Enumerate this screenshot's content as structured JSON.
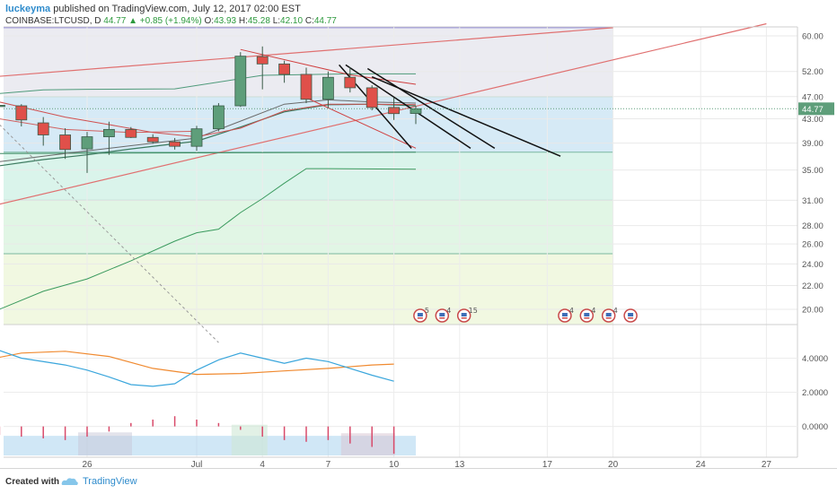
{
  "header": {
    "user": "luckeyma",
    "published": "published on TradingView.com, July 12, 2017 02:00 EST"
  },
  "ohlc": {
    "symbol": "COINBASE:LTCUSD, D",
    "last": "44.77",
    "change": "▲ +0.85 (+1.94%)",
    "o_label": "O:",
    "o": "43.93",
    "h_label": "H:",
    "h": "45.28",
    "l_label": "L:",
    "l": "42.10",
    "c_label": "C:",
    "c": "44.77"
  },
  "footer": {
    "created_with": "Created with",
    "brand": "TradingView"
  },
  "colors": {
    "up": "#5e9e7a",
    "down": "#e0504a",
    "accent": "#2e8bcc"
  },
  "chart_data": {
    "type": "candlestick",
    "price_axis": {
      "ticks": [
        60.0,
        52.0,
        47.0,
        43.0,
        39.0,
        35.0,
        31.0,
        28.0,
        26.0,
        24.0,
        22.0,
        20.0
      ],
      "last_label": "44.77",
      "scale": "log"
    },
    "x_axis": {
      "labels": [
        {
          "day": 0,
          "text": "26"
        },
        {
          "day": 5,
          "text": "Jul"
        },
        {
          "day": 8,
          "text": "4"
        },
        {
          "day": 11,
          "text": "7"
        },
        {
          "day": 14,
          "text": "10"
        },
        {
          "day": 17,
          "text": "13"
        },
        {
          "day": 21,
          "text": "17"
        },
        {
          "day": 24,
          "text": "20"
        },
        {
          "day": 28,
          "text": "24"
        },
        {
          "day": 31,
          "text": "27"
        }
      ]
    },
    "candles": [
      {
        "day": -4,
        "o": 45.2,
        "h": 45.8,
        "l": 44.8,
        "c": 45.4
      },
      {
        "day": -3,
        "o": 45.3,
        "h": 45.6,
        "l": 41.7,
        "c": 42.8
      },
      {
        "day": -2,
        "o": 42.3,
        "h": 43.3,
        "l": 38.6,
        "c": 40.3
      },
      {
        "day": -1,
        "o": 40.3,
        "h": 41.4,
        "l": 36.6,
        "c": 38.0
      },
      {
        "day": 0,
        "o": 38.1,
        "h": 40.8,
        "l": 34.6,
        "c": 40.0
      },
      {
        "day": 1,
        "o": 40.0,
        "h": 42.5,
        "l": 37.2,
        "c": 41.2
      },
      {
        "day": 2,
        "o": 41.2,
        "h": 41.6,
        "l": 39.8,
        "c": 39.9
      },
      {
        "day": 3,
        "o": 39.9,
        "h": 40.4,
        "l": 38.9,
        "c": 39.2
      },
      {
        "day": 4,
        "o": 39.2,
        "h": 39.8,
        "l": 38.0,
        "c": 38.5
      },
      {
        "day": 5,
        "o": 38.5,
        "h": 41.8,
        "l": 37.8,
        "c": 41.3
      },
      {
        "day": 6,
        "o": 41.3,
        "h": 45.8,
        "l": 40.9,
        "c": 45.3
      },
      {
        "day": 7,
        "o": 45.3,
        "h": 56.2,
        "l": 45.1,
        "c": 55.3
      },
      {
        "day": 8,
        "o": 55.2,
        "h": 57.5,
        "l": 48.4,
        "c": 53.6
      },
      {
        "day": 9,
        "o": 53.6,
        "h": 54.3,
        "l": 49.7,
        "c": 51.4
      },
      {
        "day": 10,
        "o": 51.4,
        "h": 52.8,
        "l": 45.8,
        "c": 46.5
      },
      {
        "day": 11,
        "o": 46.5,
        "h": 52.0,
        "l": 44.9,
        "c": 50.8
      },
      {
        "day": 12,
        "o": 50.8,
        "h": 52.9,
        "l": 47.8,
        "c": 48.7
      },
      {
        "day": 13,
        "o": 48.7,
        "h": 49.2,
        "l": 44.5,
        "c": 45.0
      },
      {
        "day": 14,
        "o": 45.0,
        "h": 46.8,
        "l": 42.8,
        "c": 43.9
      },
      {
        "day": 15,
        "o": 43.93,
        "h": 45.28,
        "l": 42.1,
        "c": 44.77
      }
    ],
    "event_badges": [
      {
        "day": 15.2,
        "text": "5"
      },
      {
        "day": 16.2,
        "text": "4"
      },
      {
        "day": 17.2,
        "text": "15"
      },
      {
        "day": 21.8,
        "text": "4"
      },
      {
        "day": 22.8,
        "text": "4"
      },
      {
        "day": 23.8,
        "text": "4"
      },
      {
        "day": 24.8,
        "text": ""
      }
    ],
    "oscillator": {
      "ticks": [
        4.0,
        2.0,
        0.0
      ],
      "tick_labels": [
        "4.0000",
        "2.0000",
        "0.0000"
      ],
      "blue": [
        [
          -8,
          5.2
        ],
        [
          -5,
          4.9
        ],
        [
          -3,
          4.0
        ],
        [
          -1,
          3.6
        ],
        [
          0,
          3.3
        ],
        [
          1,
          2.9
        ],
        [
          2,
          2.45
        ],
        [
          3,
          2.35
        ],
        [
          4,
          2.5
        ],
        [
          5,
          3.3
        ],
        [
          6,
          3.9
        ],
        [
          7,
          4.3
        ],
        [
          8,
          4.0
        ],
        [
          9,
          3.7
        ],
        [
          10,
          4.0
        ],
        [
          11,
          3.8
        ],
        [
          12,
          3.4
        ],
        [
          13,
          3.0
        ],
        [
          14,
          2.65
        ]
      ],
      "orange": [
        [
          -8,
          3.0
        ],
        [
          -5,
          3.8
        ],
        [
          -3,
          4.3
        ],
        [
          -1,
          4.4
        ],
        [
          1,
          4.1
        ],
        [
          3,
          3.4
        ],
        [
          5,
          3.05
        ],
        [
          7,
          3.1
        ],
        [
          9,
          3.25
        ],
        [
          11,
          3.4
        ],
        [
          13,
          3.6
        ],
        [
          14,
          3.65
        ]
      ],
      "histogram": [
        [
          -7,
          1.0
        ],
        [
          -6,
          0.5
        ],
        [
          -5,
          0.2
        ],
        [
          -4,
          -0.5
        ],
        [
          -3,
          -0.6
        ],
        [
          -2,
          -0.7
        ],
        [
          -1,
          -0.8
        ],
        [
          0,
          -0.6
        ],
        [
          1,
          -0.3
        ],
        [
          2,
          0.2
        ],
        [
          3,
          0.4
        ],
        [
          4,
          0.6
        ],
        [
          5,
          0.4
        ],
        [
          6,
          0.2
        ],
        [
          7,
          -0.2
        ],
        [
          8,
          -0.6
        ],
        [
          9,
          -0.8
        ],
        [
          10,
          -0.9
        ],
        [
          11,
          -0.8
        ],
        [
          12,
          -1.0
        ],
        [
          13,
          -1.2
        ],
        [
          14,
          -1.6
        ]
      ]
    },
    "grid": true
  }
}
